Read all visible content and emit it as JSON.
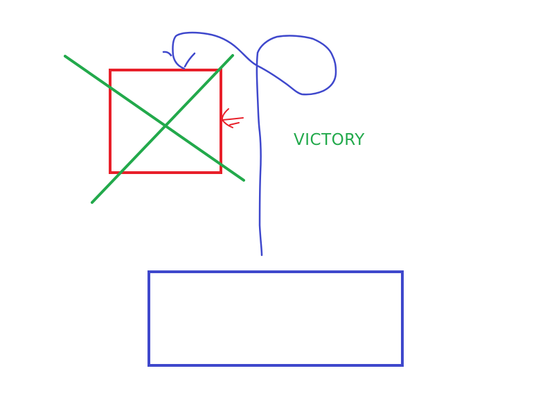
{
  "labels": {
    "victory": "VICTORY"
  },
  "colors": {
    "background": "#ffffff",
    "red": "#e8202a",
    "green": "#22a94b",
    "blue": "#3f48cc"
  },
  "icons": {
    "crossed_box": "x-mark-icon",
    "arrow": "arrow-left-icon"
  }
}
